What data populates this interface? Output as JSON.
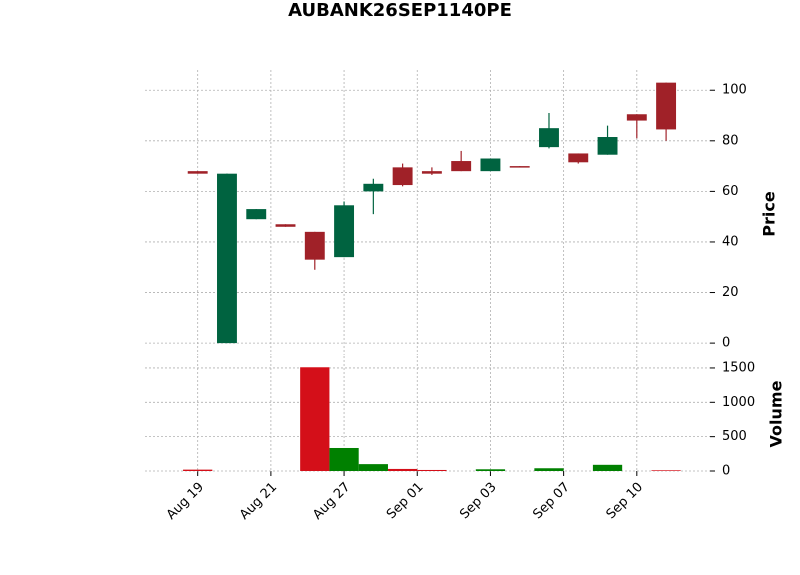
{
  "chart_data": {
    "type": "candlestick",
    "title": "AUBANK26SEP1140PE",
    "x": [
      0,
      1,
      2,
      3,
      4,
      5,
      6,
      7,
      8,
      9,
      10,
      11,
      12,
      13,
      14,
      15,
      16
    ],
    "open": [
      68,
      0,
      49,
      47,
      44,
      34,
      60,
      69.5,
      68,
      72,
      68,
      70,
      77.5,
      75,
      74.5,
      90.5,
      103
    ],
    "high": [
      68,
      67,
      53,
      47,
      44,
      56,
      65,
      71,
      69.5,
      76,
      73,
      70,
      91,
      75,
      86,
      90.5,
      103
    ],
    "low": [
      67,
      0,
      49,
      46,
      29,
      34,
      51,
      62,
      66.5,
      68,
      68,
      69.5,
      77,
      71,
      74.5,
      81,
      80
    ],
    "close": [
      67,
      67,
      53,
      46,
      33,
      54.5,
      63,
      62.5,
      67,
      68,
      73,
      69.5,
      85,
      71.5,
      81.5,
      88,
      84.5
    ],
    "volume": [
      20,
      0,
      0,
      0,
      1510,
      335,
      100,
      30,
      15,
      0,
      25,
      0,
      40,
      0,
      90,
      0,
      10
    ],
    "up_color": "#006340",
    "down_color": "#a02128",
    "volume_up_color": "#008000",
    "volume_down_color": "#d40f19",
    "grid": true,
    "xlim": [
      -1.8,
      17.5
    ],
    "xticks": [
      {
        "value": 0,
        "label": "Aug 19"
      },
      {
        "value": 2.5,
        "label": "Aug 21"
      },
      {
        "value": 5,
        "label": "Aug 27"
      },
      {
        "value": 7.5,
        "label": "Sep 01"
      },
      {
        "value": 10,
        "label": "Sep 03"
      },
      {
        "value": 12.5,
        "label": "Sep 07"
      },
      {
        "value": 15,
        "label": "Sep 10"
      }
    ],
    "ylabel": "Price",
    "ylim": [
      -4.7,
      108
    ],
    "yticks": [
      0,
      20,
      40,
      60,
      80,
      100
    ],
    "volume_panel": {
      "ylabel": "Volume",
      "ylim": [
        0,
        1674
      ],
      "yticks": [
        0,
        500,
        1000,
        1500
      ]
    }
  }
}
